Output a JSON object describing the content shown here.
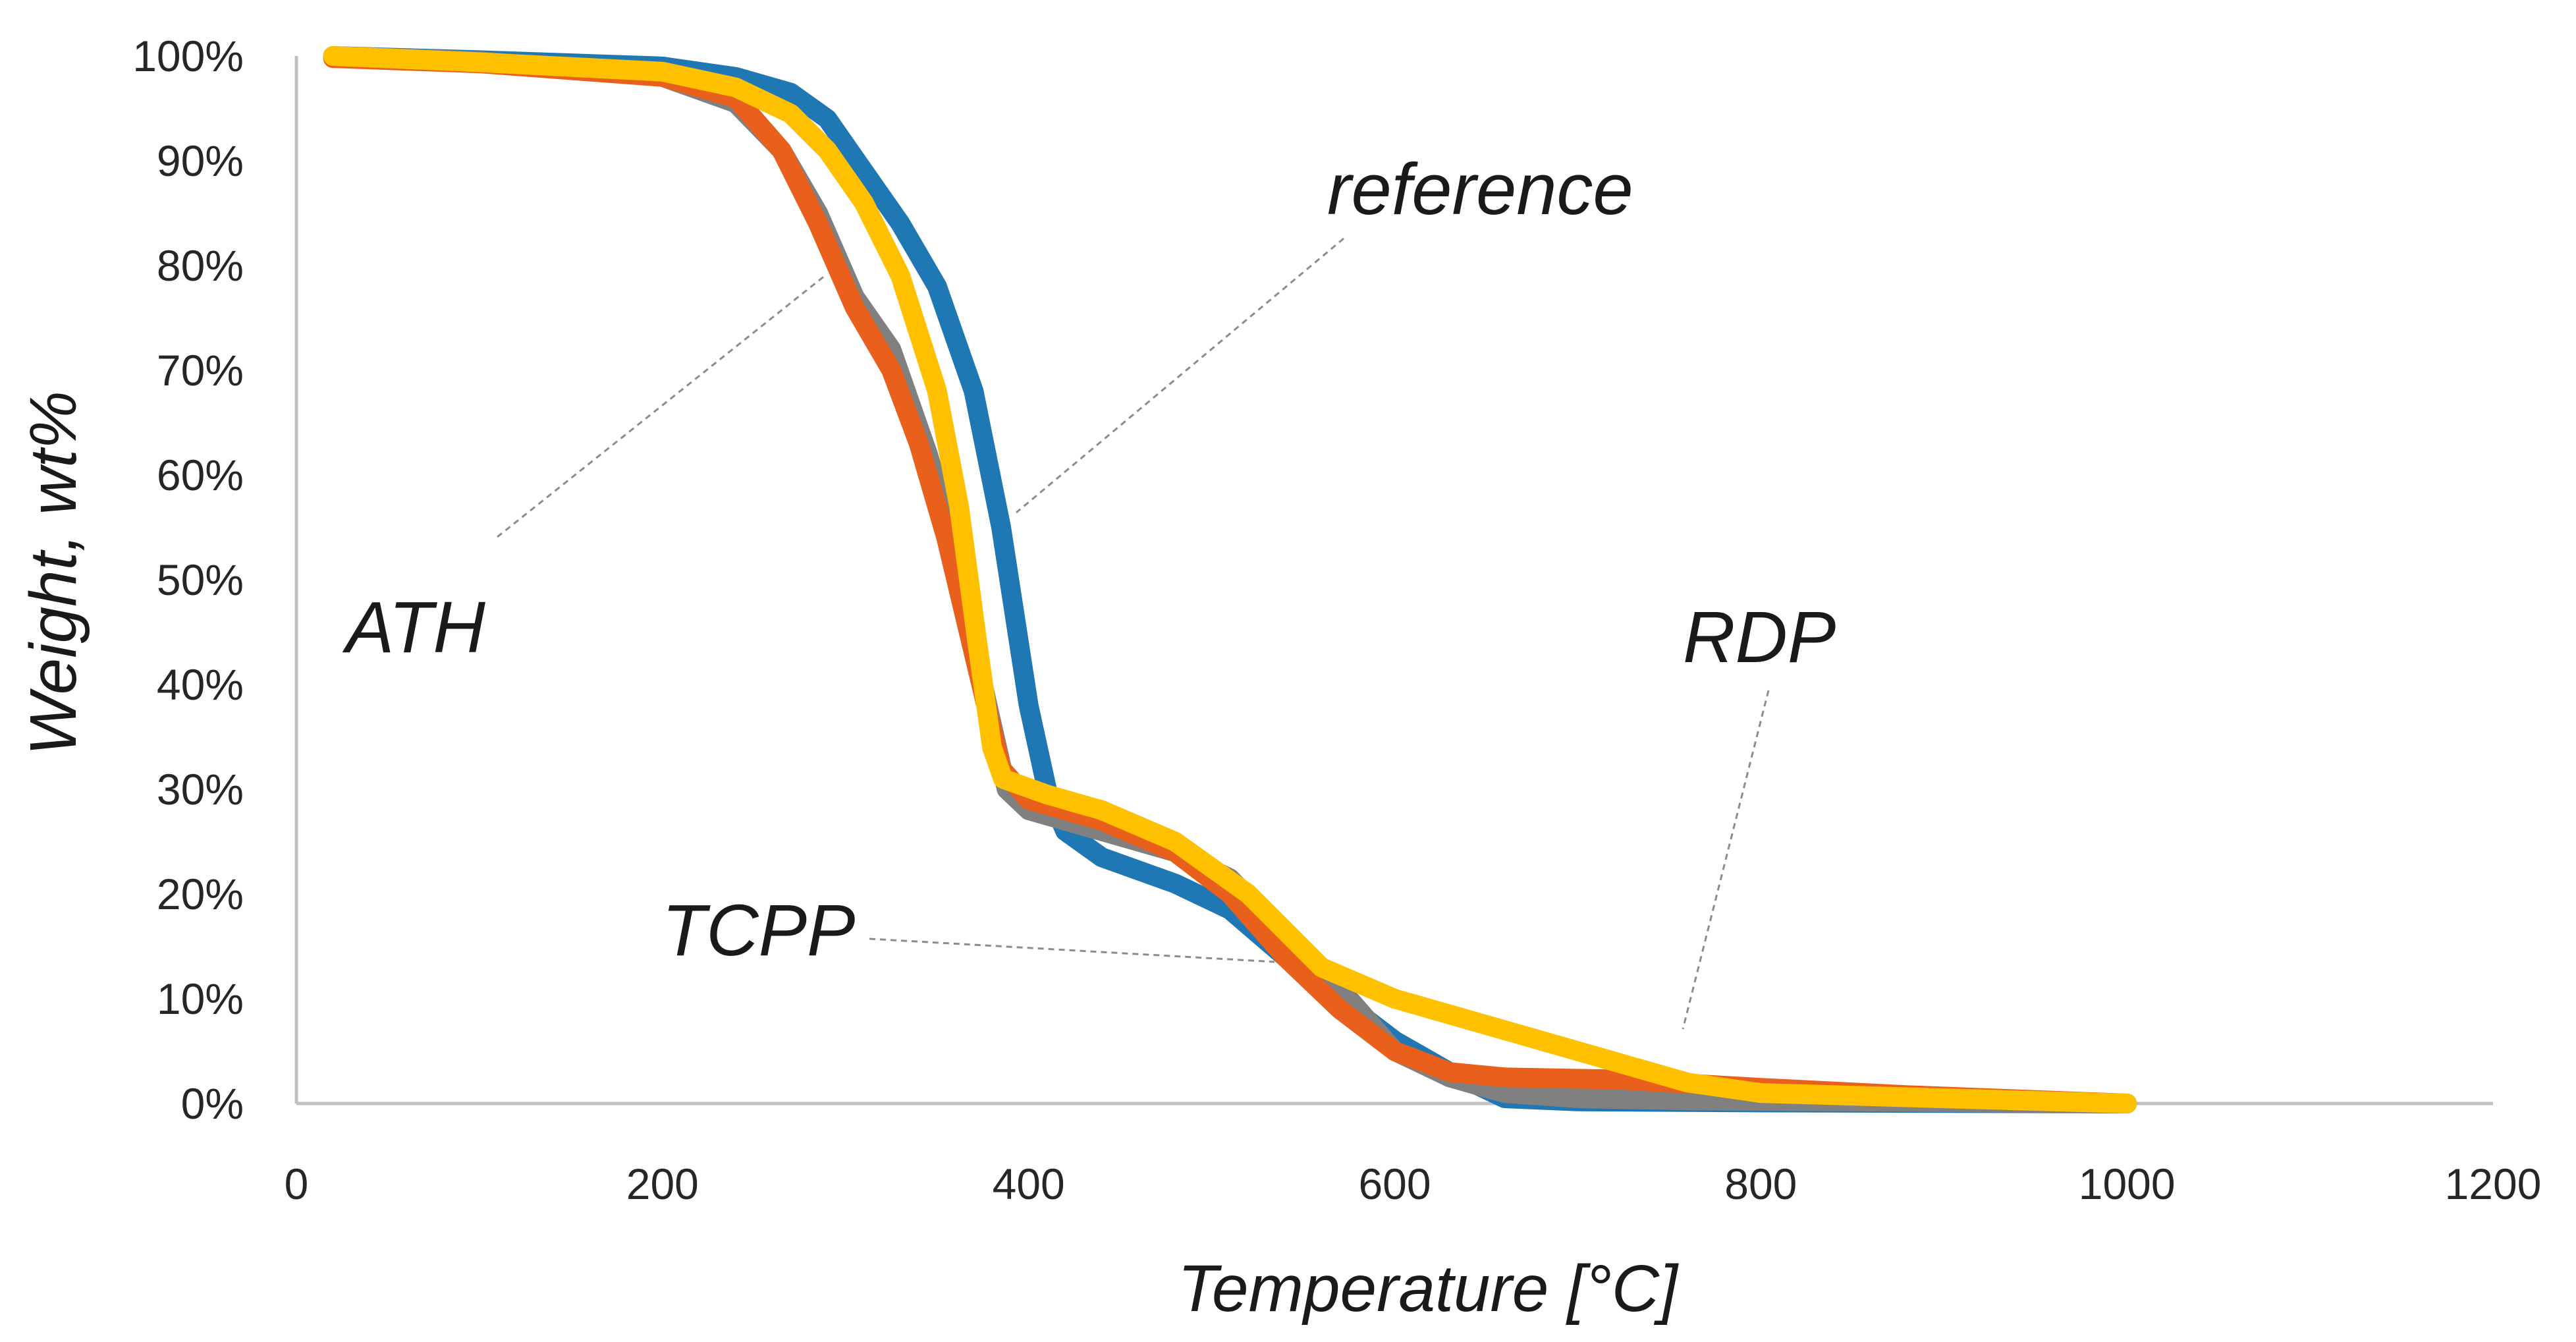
{
  "chart_data": {
    "type": "line",
    "title": "",
    "xlabel": "Temperature [°C]",
    "ylabel": "Weight, wt%",
    "xlim": [
      0,
      1200
    ],
    "ylim": [
      0,
      100
    ],
    "x_ticks": [
      "0",
      "200",
      "400",
      "600",
      "800",
      "1000",
      "1200"
    ],
    "y_ticks": [
      "0%",
      "10%",
      "20%",
      "30%",
      "40%",
      "50%",
      "60%",
      "70%",
      "80%",
      "90%",
      "100%"
    ],
    "grid": false,
    "series": [
      {
        "name": "reference",
        "color": "#1f77b4",
        "points": [
          [
            20,
            100
          ],
          [
            100,
            99.6
          ],
          [
            200,
            99
          ],
          [
            240,
            98
          ],
          [
            270,
            96.5
          ],
          [
            290,
            94
          ],
          [
            310,
            89
          ],
          [
            330,
            84
          ],
          [
            350,
            78
          ],
          [
            370,
            68
          ],
          [
            385,
            55
          ],
          [
            400,
            38
          ],
          [
            410,
            30
          ],
          [
            420,
            26
          ],
          [
            440,
            23.5
          ],
          [
            480,
            21
          ],
          [
            510,
            18.5
          ],
          [
            540,
            14
          ],
          [
            570,
            10
          ],
          [
            600,
            6
          ],
          [
            630,
            3
          ],
          [
            660,
            0.5
          ],
          [
            700,
            0.2
          ],
          [
            800,
            0.1
          ],
          [
            1000,
            0
          ]
        ]
      },
      {
        "name": "ATH",
        "color": "#808080",
        "points": [
          [
            20,
            100
          ],
          [
            100,
            99.5
          ],
          [
            200,
            98
          ],
          [
            240,
            95.5
          ],
          [
            265,
            91
          ],
          [
            285,
            85
          ],
          [
            305,
            77
          ],
          [
            325,
            72
          ],
          [
            345,
            62
          ],
          [
            360,
            53
          ],
          [
            375,
            40
          ],
          [
            388,
            30
          ],
          [
            400,
            28
          ],
          [
            440,
            26
          ],
          [
            480,
            24
          ],
          [
            510,
            21.5
          ],
          [
            540,
            16
          ],
          [
            570,
            11
          ],
          [
            600,
            5
          ],
          [
            630,
            2.5
          ],
          [
            660,
            1
          ],
          [
            700,
            0.5
          ],
          [
            760,
            0.3
          ],
          [
            1000,
            0
          ]
        ]
      },
      {
        "name": "TCPP",
        "color": "#e8601c",
        "points": [
          [
            20,
            99.8
          ],
          [
            100,
            99.3
          ],
          [
            200,
            98
          ],
          [
            240,
            96
          ],
          [
            265,
            91
          ],
          [
            285,
            84
          ],
          [
            305,
            76
          ],
          [
            325,
            70
          ],
          [
            340,
            63
          ],
          [
            355,
            54
          ],
          [
            370,
            43
          ],
          [
            385,
            32
          ],
          [
            400,
            29
          ],
          [
            440,
            27
          ],
          [
            480,
            24
          ],
          [
            510,
            20
          ],
          [
            540,
            14
          ],
          [
            570,
            9
          ],
          [
            600,
            5
          ],
          [
            630,
            3
          ],
          [
            660,
            2.5
          ],
          [
            720,
            2.3
          ],
          [
            800,
            1.5
          ],
          [
            880,
            0.8
          ],
          [
            1000,
            0
          ]
        ]
      },
      {
        "name": "RDP",
        "color": "#ffc000",
        "points": [
          [
            20,
            100
          ],
          [
            100,
            99.4
          ],
          [
            200,
            98.5
          ],
          [
            240,
            97
          ],
          [
            270,
            94.5
          ],
          [
            290,
            91
          ],
          [
            310,
            86
          ],
          [
            330,
            79
          ],
          [
            350,
            68
          ],
          [
            362,
            57
          ],
          [
            372,
            44
          ],
          [
            380,
            34
          ],
          [
            386,
            31
          ],
          [
            410,
            29.5
          ],
          [
            440,
            28
          ],
          [
            480,
            25
          ],
          [
            520,
            20
          ],
          [
            560,
            13
          ],
          [
            600,
            10
          ],
          [
            640,
            8
          ],
          [
            680,
            6
          ],
          [
            720,
            4
          ],
          [
            760,
            2
          ],
          [
            800,
            1
          ],
          [
            880,
            0.6
          ],
          [
            1000,
            0
          ]
        ]
      }
    ],
    "annotations": [
      {
        "text": "reference",
        "series": "reference"
      },
      {
        "text": "ATH",
        "series": "ATH"
      },
      {
        "text": "TCPP",
        "series": "TCPP"
      },
      {
        "text": "RDP",
        "series": "RDP"
      }
    ]
  }
}
